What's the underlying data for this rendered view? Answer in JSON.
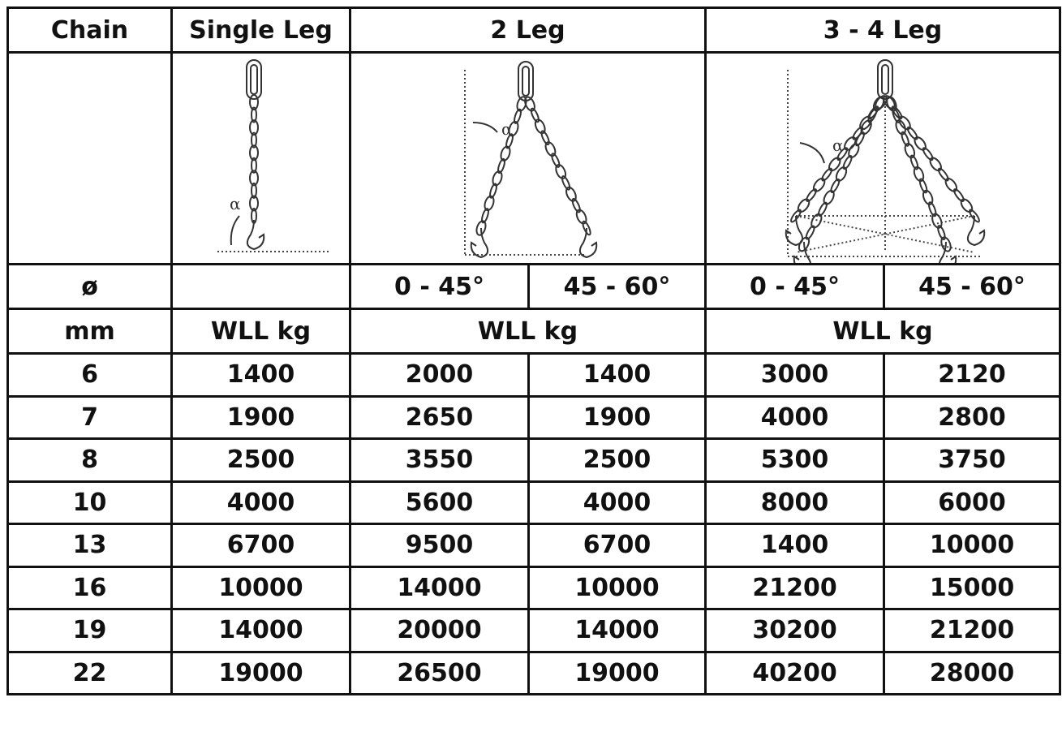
{
  "table": {
    "header": [
      "Chain",
      "Single Leg",
      "2 Leg",
      "3 - 4 Leg"
    ],
    "diagram_label": "α",
    "angle_row": [
      "ø",
      "0 - 45°",
      "45 - 60°",
      "0 - 45°",
      "45 - 60°"
    ],
    "unit_row": [
      "mm",
      "WLL kg",
      "WLL kg",
      "WLL kg"
    ],
    "rows": [
      [
        6,
        1400,
        2000,
        1400,
        3000,
        2120
      ],
      [
        7,
        1900,
        2650,
        1900,
        4000,
        2800
      ],
      [
        8,
        2500,
        3550,
        2500,
        5300,
        3750
      ],
      [
        10,
        4000,
        5600,
        4000,
        8000,
        6000
      ],
      [
        13,
        6700,
        9500,
        6700,
        1400,
        10000
      ],
      [
        16,
        10000,
        14000,
        10000,
        21200,
        15000
      ],
      [
        19,
        14000,
        20000,
        14000,
        30200,
        21200
      ],
      [
        22,
        19000,
        26500,
        19000,
        40200,
        28000
      ]
    ]
  }
}
